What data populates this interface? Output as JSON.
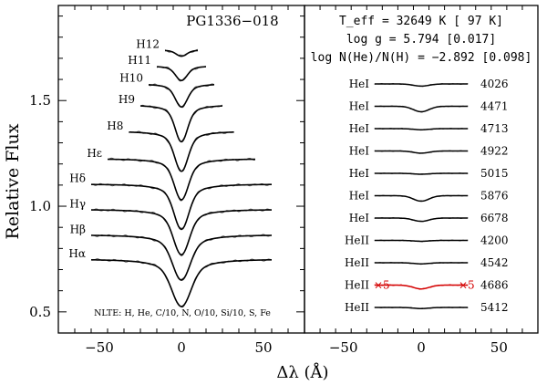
{
  "chart_data": {
    "type": "line",
    "ylabel": "Relative Flux",
    "xlabel": "Δλ (Å)",
    "panels": [
      {
        "name": "left",
        "title": "PG1336−018",
        "xlim": [
          -75,
          75
        ],
        "ylim": [
          0.4,
          1.95
        ],
        "xticks": [
          -50,
          0,
          50
        ],
        "yticks": [
          0.5,
          1.0,
          1.5
        ],
        "footnote": "NLTE: H, He, C/10, N, O/10, Si/10, S, Fe",
        "lines": [
          {
            "label": "Hα",
            "offset": 0.75,
            "halfwidth": 55,
            "depth": 0.225,
            "width": 5.5
          },
          {
            "label": "Hβ",
            "offset": 0.865,
            "halfwidth": 55,
            "depth": 0.215,
            "width": 5.0
          },
          {
            "label": "Hγ",
            "offset": 0.985,
            "halfwidth": 55,
            "depth": 0.215,
            "width": 4.5
          },
          {
            "label": "Hδ",
            "offset": 1.105,
            "halfwidth": 55,
            "depth": 0.215,
            "width": 4.2
          },
          {
            "label": "Hε",
            "offset": 1.225,
            "halfwidth": 45,
            "depth": 0.195,
            "width": 4.0
          },
          {
            "label": "H8",
            "offset": 1.355,
            "halfwidth": 32,
            "depth": 0.19,
            "width": 3.8
          },
          {
            "label": "H9",
            "offset": 1.48,
            "halfwidth": 25,
            "depth": 0.175,
            "width": 3.5
          },
          {
            "label": "H10",
            "offset": 1.58,
            "halfwidth": 20,
            "depth": 0.11,
            "width": 3.5
          },
          {
            "label": "H11",
            "offset": 1.665,
            "halfwidth": 15,
            "depth": 0.07,
            "width": 3.3
          },
          {
            "label": "H12",
            "offset": 1.74,
            "halfwidth": 10,
            "depth": 0.03,
            "width": 3.0
          }
        ]
      },
      {
        "name": "right",
        "xlim": [
          -75,
          75
        ],
        "xticks": [
          -50,
          0,
          50
        ],
        "params": [
          "T_eff = 32649 K [ 97 K]",
          "log g = 5.794 [0.017]",
          "log N(He)/N(H) = −2.892 [0.098]"
        ],
        "lines": [
          {
            "label": "HeI",
            "wavelength": "4026",
            "depth": 0.02
          },
          {
            "label": "HeI",
            "wavelength": "4471",
            "depth": 0.05
          },
          {
            "label": "HeI",
            "wavelength": "4713",
            "depth": 0.01
          },
          {
            "label": "HeI",
            "wavelength": "4922",
            "depth": 0.02
          },
          {
            "label": "HeI",
            "wavelength": "5015",
            "depth": 0.008
          },
          {
            "label": "HeI",
            "wavelength": "5876",
            "depth": 0.05
          },
          {
            "label": "HeI",
            "wavelength": "6678",
            "depth": 0.03
          },
          {
            "label": "HeII",
            "wavelength": "4200",
            "depth": 0.008
          },
          {
            "label": "HeII",
            "wavelength": "4542",
            "depth": 0.01
          },
          {
            "label": "HeII",
            "wavelength": "4686",
            "depth": 0.035,
            "scale_label": "×5",
            "highlight": "#d40000"
          },
          {
            "label": "HeII",
            "wavelength": "5412",
            "depth": 0.01
          }
        ]
      }
    ]
  },
  "params_sub": "eff",
  "colors": {
    "axes": "#000000",
    "model": "#000000",
    "observed": "#555555",
    "highlight": "#d40000"
  }
}
